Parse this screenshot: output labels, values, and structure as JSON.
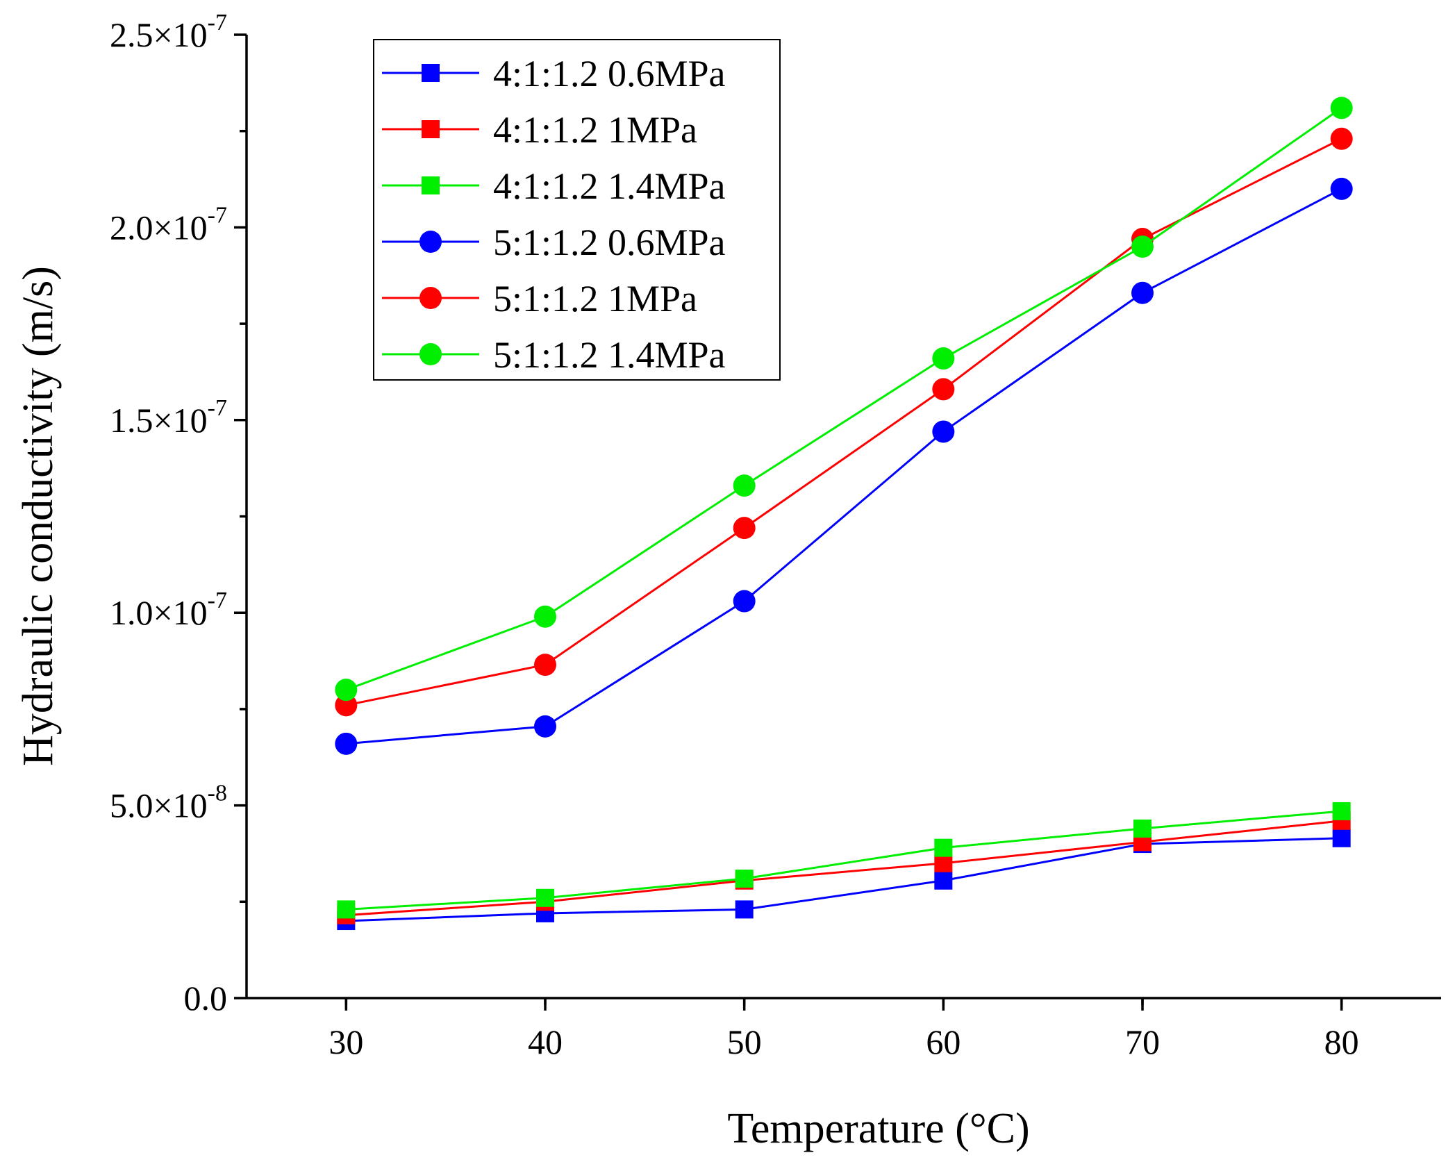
{
  "chart_data": {
    "type": "line",
    "title": "",
    "xlabel": "Temperature (°C)",
    "ylabel": "Hydraulic conductivity (m/s)",
    "xlim": [
      25,
      85
    ],
    "ylim": [
      0,
      2.5e-07
    ],
    "x": [
      30,
      40,
      50,
      60,
      70,
      80
    ],
    "x_tick_labels": [
      "30",
      "40",
      "50",
      "60",
      "70",
      "80"
    ],
    "y_tick_values": [
      0,
      5e-08,
      1e-07,
      1.5e-07,
      2e-07,
      2.5e-07
    ],
    "y_tick_mantissas": [
      "0.0",
      "5.0×10",
      "1.0×10",
      "1.5×10",
      "2.0×10",
      "2.5×10"
    ],
    "y_tick_exponents": [
      "",
      "-8",
      "-7",
      "-7",
      "-7",
      "-7"
    ],
    "grid": false,
    "legend_position": "top-left",
    "series": [
      {
        "name": "4:1:1.2 0.6MPa",
        "color": "#0000ff",
        "marker": "square",
        "values": [
          2e-08,
          2.2e-08,
          2.3e-08,
          3.05e-08,
          4e-08,
          4.15e-08
        ]
      },
      {
        "name": "4:1:1.2 1MPa",
        "color": "#ff0000",
        "marker": "square",
        "values": [
          2.15e-08,
          2.5e-08,
          3.05e-08,
          3.5e-08,
          4.05e-08,
          4.6e-08
        ]
      },
      {
        "name": "4:1:1.2 1.4MPa",
        "color": "#00ee00",
        "marker": "square",
        "values": [
          2.3e-08,
          2.6e-08,
          3.1e-08,
          3.9e-08,
          4.4e-08,
          4.85e-08
        ]
      },
      {
        "name": "5:1:1.2 0.6MPa",
        "color": "#0000ff",
        "marker": "circle",
        "values": [
          6.6e-08,
          7.05e-08,
          1.03e-07,
          1.47e-07,
          1.83e-07,
          2.1e-07
        ]
      },
      {
        "name": "5:1:1.2 1MPa",
        "color": "#ff0000",
        "marker": "circle",
        "values": [
          7.6e-08,
          8.65e-08,
          1.22e-07,
          1.58e-07,
          1.97e-07,
          2.23e-07
        ]
      },
      {
        "name": "5:1:1.2 1.4MPa",
        "color": "#00ee00",
        "marker": "circle",
        "values": [
          8e-08,
          9.9e-08,
          1.33e-07,
          1.66e-07,
          1.95e-07,
          2.31e-07
        ]
      }
    ]
  }
}
